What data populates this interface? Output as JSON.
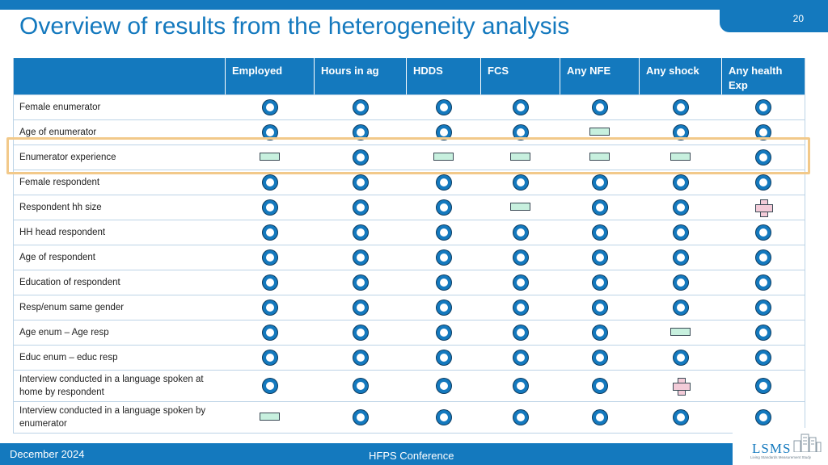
{
  "slide": {
    "title": "Overview of results from the heterogeneity analysis",
    "page_number": "20"
  },
  "table": {
    "headers": [
      "",
      "Employed",
      "Hours in ag",
      "HDDS",
      "FCS",
      "Any NFE",
      "Any shock",
      "Any health Exp"
    ],
    "rows": [
      {
        "label": "Female enumerator",
        "symbols": [
          "circle",
          "circle",
          "circle",
          "circle",
          "circle",
          "circle",
          "circle"
        ]
      },
      {
        "label": "Age of enumerator",
        "symbols": [
          "circle",
          "circle",
          "circle",
          "circle",
          "bar",
          "circle",
          "circle"
        ]
      },
      {
        "label": "Enumerator experience",
        "symbols": [
          "bar",
          "circle",
          "bar",
          "bar",
          "bar",
          "bar",
          "circle"
        ]
      },
      {
        "label": "Female respondent",
        "symbols": [
          "circle",
          "circle",
          "circle",
          "circle",
          "circle",
          "circle",
          "circle"
        ]
      },
      {
        "label": "Respondent hh size",
        "symbols": [
          "circle",
          "circle",
          "circle",
          "bar",
          "circle",
          "circle",
          "plus"
        ]
      },
      {
        "label": "HH head respondent",
        "symbols": [
          "circle",
          "circle",
          "circle",
          "circle",
          "circle",
          "circle",
          "circle"
        ]
      },
      {
        "label": "Age of respondent",
        "symbols": [
          "circle",
          "circle",
          "circle",
          "circle",
          "circle",
          "circle",
          "circle"
        ]
      },
      {
        "label": "Education of respondent",
        "symbols": [
          "circle",
          "circle",
          "circle",
          "circle",
          "circle",
          "circle",
          "circle"
        ]
      },
      {
        "label": "Resp/enum same gender",
        "symbols": [
          "circle",
          "circle",
          "circle",
          "circle",
          "circle",
          "circle",
          "circle"
        ]
      },
      {
        "label": "Age enum – Age resp",
        "symbols": [
          "circle",
          "circle",
          "circle",
          "circle",
          "circle",
          "bar",
          "circle"
        ]
      },
      {
        "label": "Educ enum – educ resp",
        "symbols": [
          "circle",
          "circle",
          "circle",
          "circle",
          "circle",
          "circle",
          "circle"
        ]
      },
      {
        "label": "Interview conducted in a language spoken at home by respondent",
        "symbols": [
          "circle",
          "circle",
          "circle",
          "circle",
          "circle",
          "plus",
          "circle"
        ]
      },
      {
        "label": "Interview conducted in a language spoken by enumerator",
        "symbols": [
          "bar",
          "circle",
          "circle",
          "circle",
          "circle",
          "circle",
          "circle"
        ]
      }
    ]
  },
  "footer": {
    "date": "December 2024",
    "conference": "HFPS Conference"
  },
  "logo": {
    "text": "LSMS",
    "subtitle": "Living Standards Measurement Study"
  },
  "colors": {
    "brand_blue": "#1479be",
    "bar_fill": "#c7f0de",
    "plus_fill": "#f3cbd8",
    "highlight": "#f2c98a"
  }
}
